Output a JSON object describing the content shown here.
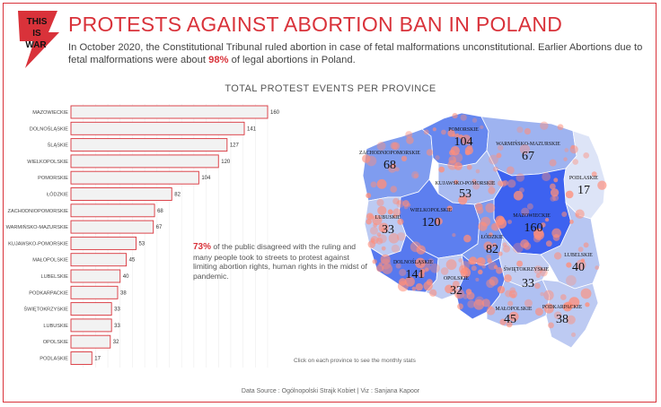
{
  "header": {
    "logo_text": [
      "THIS",
      "IS",
      "WAR"
    ],
    "title": "PROTESTS AGAINST ABORTION BAN IN POLAND",
    "subtitle_before": "In October 2020, the Constitutional Tribunal ruled abortion in case of fetal malformations unconstitutional. Earlier Abortions due to fetal malformations were about ",
    "subtitle_highlight": "98%",
    "subtitle_after": " of legal abortions in Poland."
  },
  "section_title": "TOTAL PROTEST EVENTS PER PROVINCE",
  "callout": {
    "highlight": "73%",
    "text": " of the public disagreed with the ruling and many people took to streets to protest against limiting abortion rights, human rights in the midst of pandemic."
  },
  "map_note": "Click on each province to see the monthly stats",
  "footer": "Data Source :  Ogólnopolski Strajk Kobiet  |  Viz : Sanjana Kapoor",
  "colors": {
    "accent": "#d9323a",
    "bar_fill": "#f2f2f2",
    "map_high": "#4a6ff0",
    "map_low": "#dde4f7",
    "dot": "#ff8e7a"
  },
  "chart_data": {
    "type": "bar",
    "orientation": "horizontal",
    "categories": [
      "MAZOWIECKIE",
      "DOLNOŚLĄSKIE",
      "ŚLĄSKIE",
      "WIELKOPOLSKIE",
      "POMORSKIE",
      "ŁÓDZKIE",
      "ZACHODNIOPOMORSKIE",
      "WARMIŃSKO-MAZURSKIE",
      "KUJAWSKO-POMORSKIE",
      "MAŁOPOLSKIE",
      "LUBELSKIE",
      "PODKARPACKIE",
      "ŚWIĘTOKRZYSKIE",
      "LUBUSKIE",
      "OPOLSKIE",
      "PODLASKIE"
    ],
    "values": [
      160,
      141,
      127,
      120,
      104,
      82,
      68,
      67,
      53,
      45,
      40,
      38,
      33,
      33,
      32,
      17
    ],
    "xlim": [
      0,
      160
    ]
  },
  "map_data": {
    "type": "choropleth",
    "provinces": [
      {
        "name": "POMORSKIE",
        "value": 104
      },
      {
        "name": "WARMIŃSKO-MAZURSKIE",
        "value": 67
      },
      {
        "name": "ZACHODNIOPOMORSKIE",
        "value": 68
      },
      {
        "name": "PODLASKIE",
        "value": 17
      },
      {
        "name": "KUJAWSKO-POMORSKIE",
        "value": 53
      },
      {
        "name": "LUBUSKIE",
        "value": 33
      },
      {
        "name": "WIELKOPOLSKIE",
        "value": 120
      },
      {
        "name": "MAZOWIECKIE",
        "value": 160
      },
      {
        "name": "ŁÓDZKIE",
        "value": 82
      },
      {
        "name": "LUBELSKIE",
        "value": 40
      },
      {
        "name": "DOLNOŚLĄSKIE",
        "value": 141
      },
      {
        "name": "ŚWIĘTOKRZYSKIE",
        "value": 33
      },
      {
        "name": "OPOLSKIE",
        "value": 32
      },
      {
        "name": "ŚLĄSKIE",
        "value": 127
      },
      {
        "name": "MAŁOPOLSKIE",
        "value": 45
      },
      {
        "name": "PODKARPACKIE",
        "value": 38
      }
    ]
  }
}
